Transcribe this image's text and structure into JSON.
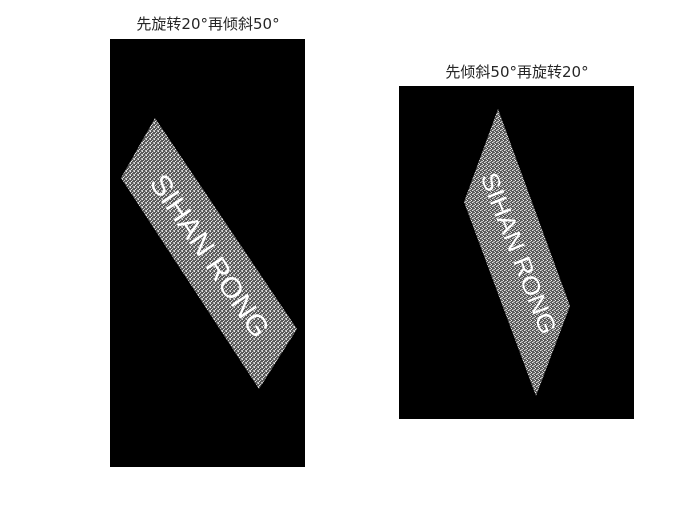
{
  "panels": [
    {
      "title": "先旋转20°再倾斜50°",
      "image_text": "SIHAN RONG",
      "background_color": "#000000",
      "band_color": "#7a7a7a",
      "text_color": "#ffffff"
    },
    {
      "title": "先倾斜50°再旋转20°",
      "image_text": "SIHAN RONG",
      "background_color": "#000000",
      "band_color": "#7a7a7a",
      "text_color": "#ffffff"
    }
  ]
}
